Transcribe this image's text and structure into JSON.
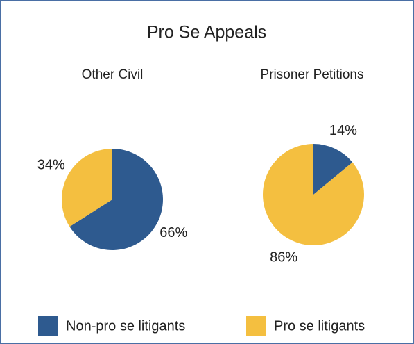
{
  "title": "Pro Se Appeals",
  "categories": [
    "Non-pro se litigants",
    "Pro se litigants"
  ],
  "colors": [
    "#2e5a8f",
    "#f4bf40"
  ],
  "chart_data": [
    {
      "type": "pie",
      "title": "Other Civil",
      "values": [
        66,
        34
      ],
      "value_labels": [
        "66%",
        "34%"
      ]
    },
    {
      "type": "pie",
      "title": "Prisoner Petitions",
      "values": [
        14,
        86
      ],
      "value_labels": [
        "14%",
        "86%"
      ]
    }
  ]
}
